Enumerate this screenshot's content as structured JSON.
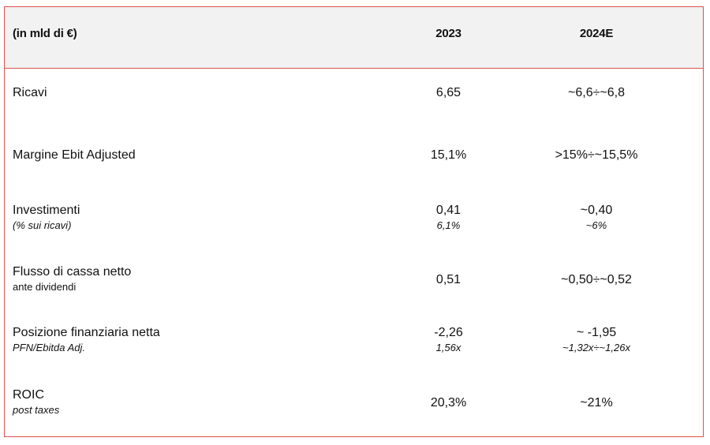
{
  "header": {
    "unit_label": "(in mld di €)",
    "col_2023": "2023",
    "col_2024e": "2024E"
  },
  "rows": [
    {
      "label": "Ricavi",
      "sublabel": "",
      "v2023": "6,65",
      "v2023_sub": "",
      "v2024": "~6,6÷~6,8",
      "v2024_sub": ""
    },
    {
      "label": "Margine Ebit Adjusted",
      "sublabel": "",
      "v2023": "15,1%",
      "v2023_sub": "",
      "v2024": ">15%÷~15,5%",
      "v2024_sub": ""
    },
    {
      "label": "Investimenti",
      "sublabel": "(% sui ricavi)",
      "v2023": "0,41",
      "v2023_sub": "6,1%",
      "v2024": "~0,40",
      "v2024_sub": "~6%"
    },
    {
      "label": "Flusso di cassa netto",
      "sublabel": "ante dividendi",
      "v2023": "0,51",
      "v2023_sub": "",
      "v2024": "~0,50÷~0,52",
      "v2024_sub": ""
    },
    {
      "label": "Posizione finanziaria netta",
      "sublabel": "PFN/Ebitda Adj.",
      "v2023": "-2,26",
      "v2023_sub": "1,56x",
      "v2024": "~ -1,95",
      "v2024_sub": "~1,32x÷~1,26x"
    },
    {
      "label": "ROIC",
      "sublabel": "post taxes",
      "v2023": "20,3%",
      "v2023_sub": "",
      "v2024": "~21%",
      "v2024_sub": ""
    }
  ]
}
